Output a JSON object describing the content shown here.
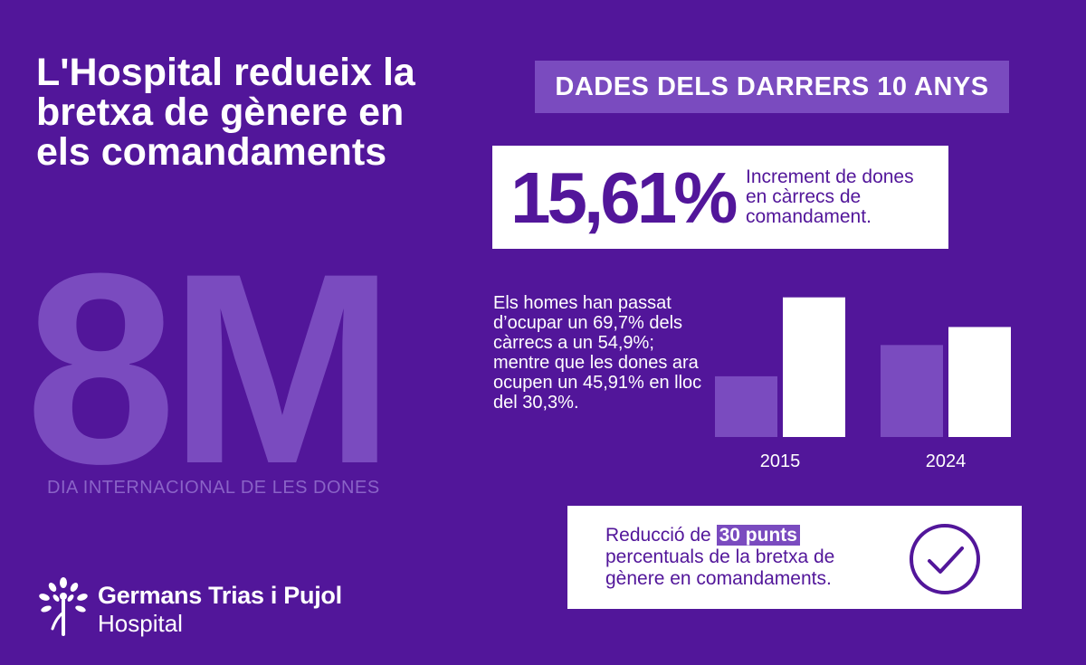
{
  "headline": "L'Hospital redueix la bretxa de gènere en els comandaments",
  "event": {
    "big_label": "8M",
    "subtitle": "DIA INTERNACIONAL DE LES DONES"
  },
  "brand": {
    "name": "Germans Trias i Pujol",
    "sub": "Hospital",
    "logo_icon": "flower-figure-icon"
  },
  "banner": "DADES DELS DARRERS 10 ANYS",
  "stat": {
    "value": "15,61%",
    "description": "Increment de dones en càrrecs de comandament."
  },
  "men_text": "Els homes han passat d’ocupar un 69,7% dels càrrecs a un 54,9%; mentre que les dones ara ocupen un 45,91% en lloc del 30,3%.",
  "reduction": {
    "prefix": "Reducció de",
    "highlight": "30 punts",
    "suffix": "percentuals de la bretxa de gènere en comandaments.",
    "icon": "checkmark-circle-icon"
  },
  "colors": {
    "background": "#52169a",
    "accent": "#7a4bbf",
    "white": "#ffffff"
  },
  "chart_data": {
    "type": "bar",
    "categories": [
      "2015",
      "2024"
    ],
    "series": [
      {
        "values": [
          30.3,
          45.91
        ],
        "color": "#7a4bbf"
      },
      {
        "values": [
          69.7,
          54.9
        ],
        "color": "#ffffff"
      }
    ],
    "ylim": [
      0,
      70
    ],
    "grid": false,
    "title": "",
    "xlabel": "",
    "ylabel": ""
  }
}
